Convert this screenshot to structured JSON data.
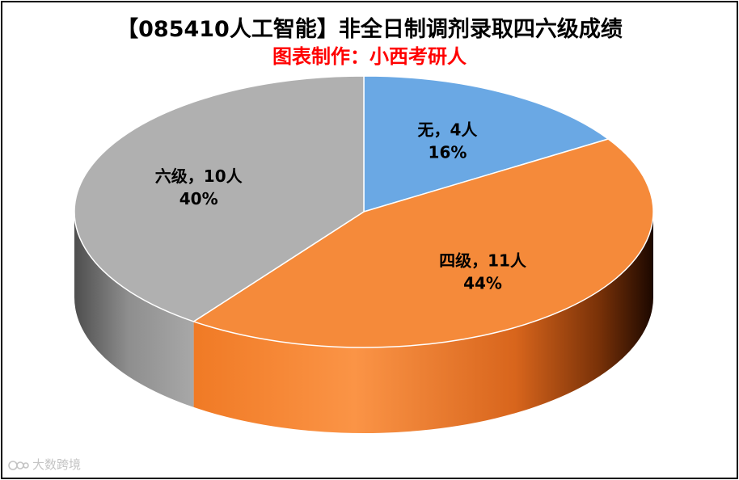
{
  "title": "【085410人工智能】非全日制调剂录取四六级成绩",
  "subtitle": "图表制作：小西考研人",
  "watermark": "大数跨境",
  "chart_data": {
    "type": "pie",
    "style": "3d",
    "title": "【085410人工智能】非全日制调剂录取四六级成绩",
    "subtitle": "图表制作：小西考研人",
    "legend": "none",
    "slices": [
      {
        "name": "无",
        "count": 4,
        "unit": "人",
        "percent": "16%",
        "value": 16,
        "color": "#6AA8E4",
        "label": "无，4人",
        "percent_label": "16%"
      },
      {
        "name": "四级",
        "count": 11,
        "unit": "人",
        "percent": "44%",
        "value": 44,
        "color": "#F58A3A",
        "label": "四级，11人",
        "percent_label": "44%"
      },
      {
        "name": "六级",
        "count": 10,
        "unit": "人",
        "percent": "40%",
        "value": 40,
        "color": "#B0B0B0",
        "label": "六级，10人",
        "percent_label": "40%"
      }
    ]
  }
}
